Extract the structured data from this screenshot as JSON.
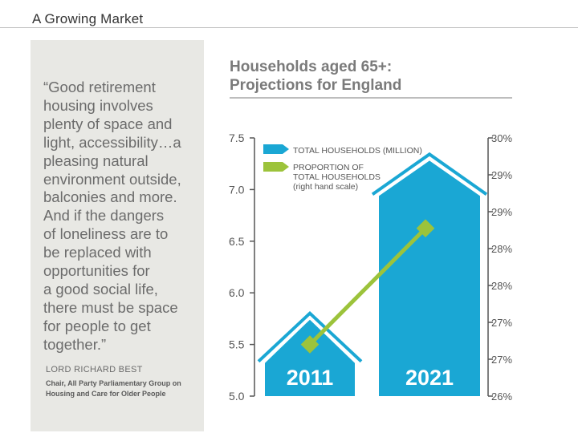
{
  "slide": {
    "title": "A Growing Market"
  },
  "quote": {
    "lines": [
      "“Good retirement",
      "housing involves",
      "plenty of space and",
      "light, accessibility…a",
      "pleasing natural",
      "environment outside,",
      "balconies and more.",
      "And if the dangers",
      "of loneliness are to",
      "be replaced with",
      "opportunities for",
      "a good social life,",
      "there must be space",
      "for people to get",
      "together.”"
    ],
    "author": "LORD RICHARD BEST",
    "role_lines": [
      "Chair, All Party Parliamentary Group on",
      "Housing and Care for Older People"
    ]
  },
  "chart_title_lines": [
    "Households aged 65+:",
    "Projections for England"
  ],
  "colors": {
    "bars": "#1aa7d4",
    "line": "#9cc33b",
    "axis": "#555555",
    "panel": "#e8e8e4"
  },
  "chart_data": {
    "type": "bar",
    "categories": [
      "2011",
      "2021"
    ],
    "series": [
      {
        "name": "TOTAL HOUSEHOLDS (MILLION)",
        "axis": "left",
        "values": [
          5.74,
          7.28
        ]
      },
      {
        "name": "PROPORTION OF TOTAL HOUSEHOLDS (right hand scale)",
        "axis": "right",
        "type": "line",
        "values": [
          26.8,
          28.6
        ]
      }
    ],
    "legend": [
      {
        "label_lines": [
          "TOTAL HOUSEHOLDS (MILLION)"
        ],
        "icon": "blue-arrow-icon"
      },
      {
        "label_lines": [
          "PROPORTION OF",
          "TOTAL HOUSEHOLDS",
          "(right hand scale)"
        ],
        "icon": "green-arrow-icon"
      }
    ],
    "y_left": {
      "range": [
        5.0,
        7.5
      ],
      "ticks": [
        "7.5",
        "7.0",
        "6.5",
        "6.0",
        "5.5",
        "5.0"
      ]
    },
    "y_right": {
      "range": [
        26,
        30
      ],
      "ticks": [
        "30%",
        "29%",
        "29%",
        "28%",
        "28%",
        "27%",
        "27%",
        "26%"
      ]
    }
  }
}
